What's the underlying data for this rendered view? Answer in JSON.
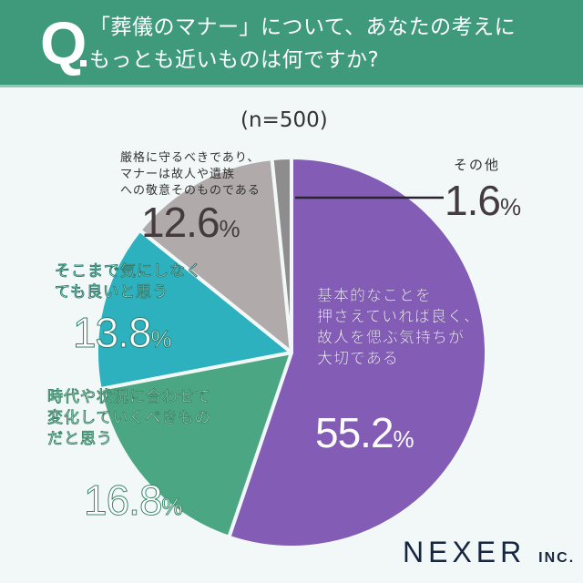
{
  "header": {
    "q_letter": "Q",
    "question_line1": "「葬儀のマナー」について、あなたの考えに",
    "question_line2": "もっとも近いものは何ですか?"
  },
  "sample_size": "(n=500)",
  "colors": {
    "header_bg": "#3f9a7c",
    "page_bg": "#f1f8f7",
    "purple": "#835cb6",
    "green": "#4aa683",
    "teal": "#2db1be",
    "lightgray": "#b0aaab",
    "darkgray": "#8d8d8d"
  },
  "slices": [
    {
      "label_lines": [
        "基本的なことを",
        "押さえていれば良く、",
        "故人を偲ぶ気持ちが",
        "大切である"
      ],
      "value": "55.2",
      "unit": "%"
    },
    {
      "label_lines": [
        "時代や状況に合わせて",
        "変化していくべきもの",
        "だと思う"
      ],
      "value": "16.8",
      "unit": "%"
    },
    {
      "label_lines": [
        "そこまで気にしなく",
        "ても良いと思う"
      ],
      "value": "13.8",
      "unit": "%"
    },
    {
      "label_lines": [
        "厳格に守るべきであり、",
        "マナーは故人や遺族",
        "への敬意そのものである"
      ],
      "value": "12.6",
      "unit": "%"
    },
    {
      "label_lines": [
        "その他"
      ],
      "value": "1.6",
      "unit": "%"
    }
  ],
  "logo": {
    "name": "NEXER",
    "suffix": "INC."
  },
  "chart_data": {
    "type": "pie",
    "title": "「葬儀のマナー」について、あなたの考えにもっとも近いものは何ですか?",
    "subtitle": "(n=500)",
    "categories": [
      "基本的なことを押さえていれば良く、故人を偲ぶ気持ちが大切である",
      "時代や状況に合わせて変化していくべきものだと思う",
      "そこまで気にしなくても良いと思う",
      "厳格に守るべきであり、マナーは故人や遺族への敬意そのものである",
      "その他"
    ],
    "values": [
      55.2,
      16.8,
      13.8,
      12.6,
      1.6
    ],
    "unit": "%",
    "colors": [
      "#835cb6",
      "#4aa683",
      "#2db1be",
      "#b0aaab",
      "#8d8d8d"
    ],
    "start_angle": "12 o'clock, clockwise",
    "legend": "none (direct labels)"
  }
}
